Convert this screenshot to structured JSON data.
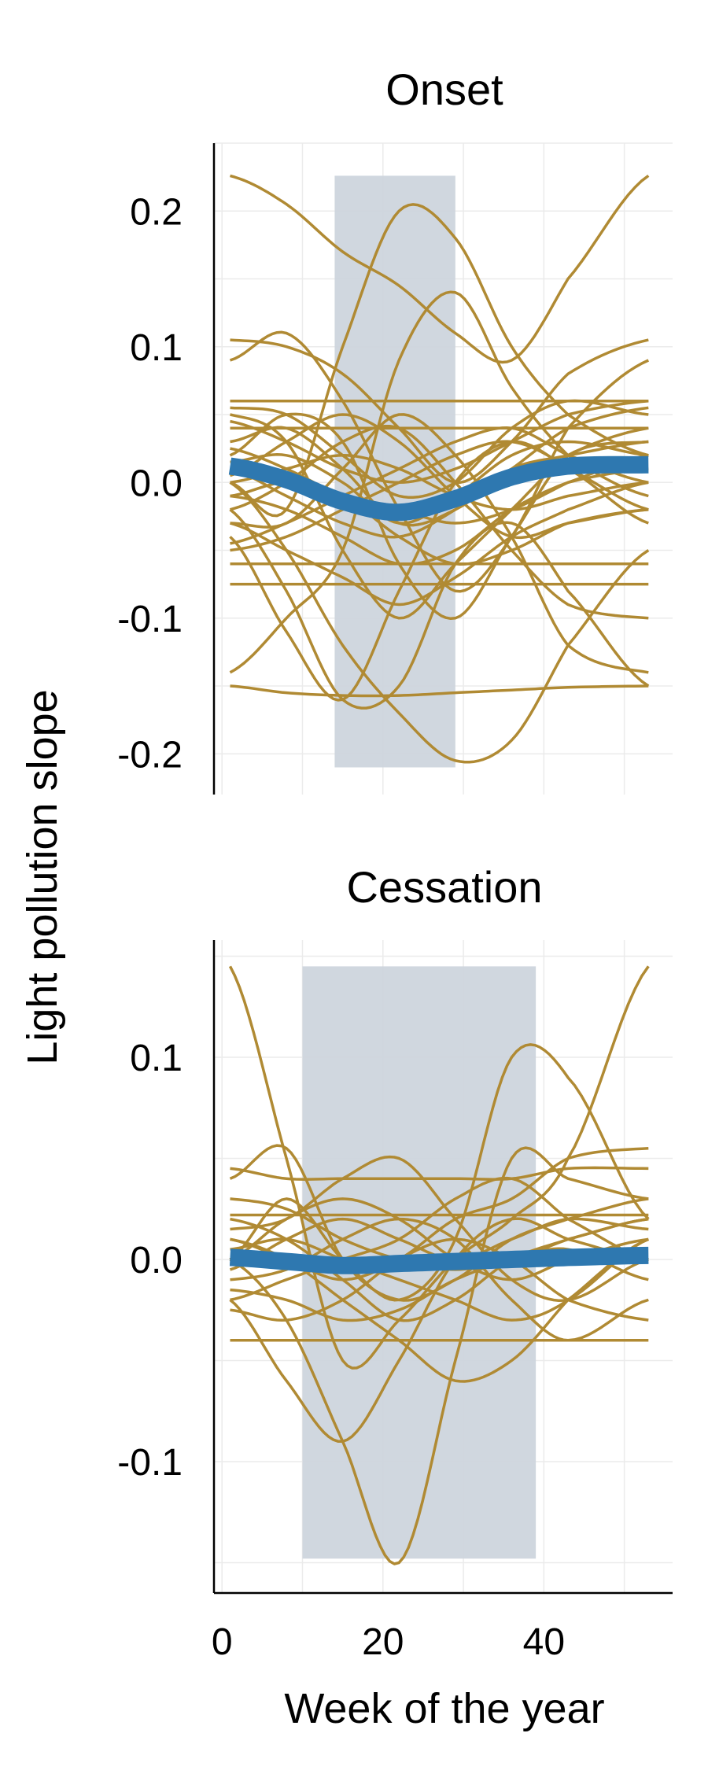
{
  "chart_data": [
    {
      "type": "line",
      "title": "Onset",
      "xlabel": "",
      "ylabel": "Light pollution slope",
      "xlim": [
        -1,
        56
      ],
      "ylim": [
        -0.23,
        0.25
      ],
      "yticks": [
        -0.2,
        -0.1,
        0.0,
        0.1,
        0.2
      ],
      "ytick_labels": [
        "-0.2",
        "-0.1",
        "0.0",
        "0.1",
        "0.2"
      ],
      "grid": true,
      "shaded_region": {
        "x": [
          14,
          29
        ],
        "y": [
          -0.21,
          0.226
        ]
      },
      "individual_color": "#B08A33",
      "mean_color": "#2E78B0",
      "shade_color": "#CDD5DD",
      "x": [
        1,
        8,
        15,
        22,
        29,
        36,
        43,
        53
      ],
      "series": [
        {
          "values": [
            0.226,
            0.205,
            0.17,
            0.145,
            0.11,
            0.09,
            0.15,
            0.226
          ]
        },
        {
          "values": [
            0.0,
            -0.02,
            0.1,
            0.2,
            0.18,
            0.1,
            0.05,
            0.02
          ]
        },
        {
          "values": [
            -0.14,
            -0.1,
            -0.05,
            0.09,
            0.14,
            0.07,
            0.02,
            -0.01
          ]
        },
        {
          "values": [
            0.09,
            0.11,
            0.06,
            -0.02,
            -0.08,
            -0.04,
            0.04,
            0.09
          ]
        },
        {
          "values": [
            0.105,
            0.1,
            0.08,
            0.04,
            0.0,
            0.03,
            0.08,
            0.105
          ]
        },
        {
          "values": [
            0.06,
            0.06,
            0.06,
            0.06,
            0.06,
            0.06,
            0.06,
            0.06
          ]
        },
        {
          "values": [
            0.04,
            0.04,
            0.04,
            0.04,
            0.04,
            0.04,
            0.04,
            0.04
          ]
        },
        {
          "values": [
            -0.06,
            -0.06,
            -0.06,
            -0.06,
            -0.06,
            -0.06,
            -0.06,
            -0.06
          ]
        },
        {
          "values": [
            -0.075,
            -0.075,
            -0.075,
            -0.075,
            -0.075,
            -0.075,
            -0.075,
            -0.075
          ]
        },
        {
          "values": [
            -0.15,
            -0.155,
            -0.157,
            -0.157,
            -0.155,
            -0.153,
            -0.151,
            -0.15
          ]
        },
        {
          "values": [
            0.0,
            -0.05,
            -0.12,
            -0.17,
            -0.205,
            -0.19,
            -0.12,
            -0.05
          ]
        },
        {
          "values": [
            -0.02,
            -0.08,
            -0.16,
            -0.15,
            -0.06,
            -0.03,
            -0.08,
            -0.15
          ]
        },
        {
          "values": [
            0.02,
            0.05,
            0.03,
            -0.06,
            -0.1,
            -0.04,
            0.02,
            0.03
          ]
        },
        {
          "values": [
            -0.04,
            -0.11,
            -0.16,
            -0.08,
            0.0,
            0.03,
            0.01,
            -0.02
          ]
        },
        {
          "values": [
            0.05,
            0.03,
            -0.05,
            -0.1,
            -0.06,
            -0.02,
            0.02,
            0.04
          ]
        },
        {
          "values": [
            -0.03,
            -0.03,
            0.01,
            0.05,
            0.02,
            -0.04,
            -0.12,
            -0.14
          ]
        },
        {
          "values": [
            0.03,
            0.04,
            0.01,
            -0.03,
            -0.02,
            0.01,
            0.04,
            0.055
          ]
        },
        {
          "values": [
            -0.01,
            -0.02,
            -0.04,
            -0.06,
            -0.05,
            -0.02,
            0.0,
            0.01
          ]
        },
        {
          "values": [
            0.015,
            0.02,
            0.0,
            -0.03,
            -0.01,
            0.02,
            0.03,
            0.02
          ]
        },
        {
          "values": [
            -0.05,
            -0.04,
            -0.02,
            0.0,
            0.02,
            0.03,
            0.01,
            -0.03
          ]
        },
        {
          "values": [
            0.045,
            0.03,
            0.01,
            0.0,
            0.01,
            0.03,
            0.05,
            0.06
          ]
        },
        {
          "values": [
            -0.02,
            0.0,
            0.03,
            0.04,
            0.0,
            -0.05,
            -0.09,
            -0.1
          ]
        },
        {
          "values": [
            0.01,
            -0.01,
            -0.03,
            -0.04,
            -0.02,
            0.01,
            0.02,
            0.03
          ]
        },
        {
          "values": [
            -0.03,
            -0.05,
            -0.07,
            -0.09,
            -0.07,
            -0.04,
            -0.02,
            0.0
          ]
        },
        {
          "values": [
            0.055,
            0.05,
            0.02,
            -0.01,
            0.0,
            0.04,
            0.06,
            0.05
          ]
        },
        {
          "values": [
            0.0,
            0.01,
            0.02,
            0.01,
            -0.01,
            -0.02,
            -0.01,
            0.0
          ]
        },
        {
          "values": [
            -0.01,
            0.0,
            -0.01,
            -0.04,
            -0.06,
            -0.05,
            -0.03,
            -0.02
          ]
        },
        {
          "values": [
            0.025,
            0.01,
            -0.01,
            -0.02,
            -0.03,
            -0.02,
            0.0,
            0.02
          ]
        },
        {
          "values": [
            -0.045,
            -0.03,
            -0.01,
            0.01,
            0.03,
            0.04,
            0.02,
            0.0
          ]
        },
        {
          "values": [
            0.005,
            0.03,
            0.05,
            0.03,
            -0.01,
            -0.04,
            -0.03,
            -0.02
          ]
        }
      ],
      "mean_series": {
        "values": [
          0.012,
          0.002,
          -0.014,
          -0.022,
          -0.012,
          0.004,
          0.012,
          0.013
        ]
      }
    },
    {
      "type": "line",
      "title": "Cessation",
      "xlabel": "Week of the year",
      "ylabel": "Light pollution slope",
      "xlim": [
        -1,
        56
      ],
      "xticks": [
        0,
        20,
        40
      ],
      "xtick_labels": [
        "0",
        "20",
        "40"
      ],
      "ylim": [
        -0.165,
        0.158
      ],
      "yticks": [
        -0.1,
        0.0,
        0.1
      ],
      "ytick_labels": [
        "-0.1",
        "0.0",
        "0.1"
      ],
      "grid": true,
      "shaded_region": {
        "x": [
          10,
          39
        ],
        "y": [
          -0.148,
          0.145
        ]
      },
      "individual_color": "#B08A33",
      "mean_color": "#2E78B0",
      "shade_color": "#CDD5DD",
      "x": [
        1,
        8,
        15,
        22,
        29,
        36,
        43,
        53
      ],
      "series": [
        {
          "values": [
            0.145,
            0.05,
            -0.05,
            -0.03,
            0.0,
            0.02,
            0.05,
            0.145
          ]
        },
        {
          "values": [
            0.0,
            -0.03,
            -0.09,
            -0.15,
            -0.05,
            0.05,
            0.04,
            0.03
          ]
        },
        {
          "values": [
            0.0,
            0.03,
            0.0,
            -0.02,
            0.01,
            0.1,
            0.09,
            0.02
          ]
        },
        {
          "values": [
            -0.02,
            -0.06,
            -0.09,
            -0.05,
            0.0,
            0.02,
            0.01,
            0.0
          ]
        },
        {
          "values": [
            0.04,
            0.055,
            0.0,
            -0.02,
            -0.01,
            0.01,
            0.02,
            0.03
          ]
        },
        {
          "values": [
            0.045,
            0.04,
            0.04,
            0.04,
            0.04,
            0.04,
            0.045,
            0.045
          ]
        },
        {
          "values": [
            -0.04,
            -0.04,
            -0.04,
            -0.04,
            -0.04,
            -0.04,
            -0.04,
            -0.04
          ]
        },
        {
          "values": [
            0.022,
            0.022,
            0.022,
            0.022,
            0.022,
            0.022,
            0.022,
            0.022
          ]
        },
        {
          "values": [
            0.01,
            0.0,
            -0.02,
            -0.04,
            -0.06,
            -0.05,
            -0.02,
            0.01
          ]
        },
        {
          "values": [
            -0.01,
            -0.005,
            0.01,
            0.02,
            0.01,
            -0.02,
            -0.04,
            -0.02
          ]
        },
        {
          "values": [
            0.015,
            0.02,
            0.04,
            0.05,
            0.02,
            -0.01,
            -0.02,
            0.0
          ]
        },
        {
          "values": [
            0.005,
            0.01,
            0.0,
            -0.01,
            -0.02,
            -0.03,
            -0.02,
            0.01
          ]
        },
        {
          "values": [
            -0.02,
            -0.01,
            0.0,
            0.01,
            0.03,
            0.04,
            0.02,
            0.0
          ]
        },
        {
          "values": [
            0.03,
            0.025,
            0.01,
            0.0,
            -0.005,
            0.0,
            0.01,
            0.02
          ]
        },
        {
          "values": [
            -0.015,
            -0.02,
            -0.03,
            -0.025,
            -0.01,
            0.0,
            0.005,
            -0.01
          ]
        },
        {
          "values": [
            0.01,
            0.0,
            -0.01,
            0.0,
            0.02,
            0.03,
            0.05,
            0.055
          ]
        },
        {
          "values": [
            -0.005,
            0.01,
            0.02,
            0.01,
            0.0,
            0.01,
            0.02,
            0.015
          ]
        },
        {
          "values": [
            0.02,
            0.01,
            -0.01,
            -0.03,
            -0.02,
            0.0,
            0.01,
            0.02
          ]
        },
        {
          "values": [
            -0.025,
            -0.03,
            -0.02,
            0.0,
            0.01,
            0.0,
            -0.02,
            -0.03
          ]
        },
        {
          "values": [
            0.0,
            0.02,
            0.03,
            0.02,
            0.0,
            -0.01,
            0.0,
            0.01
          ]
        }
      ],
      "mean_series": {
        "values": [
          0.001,
          -0.001,
          -0.003,
          -0.002,
          -0.001,
          0.0,
          0.001,
          0.002
        ]
      }
    }
  ]
}
